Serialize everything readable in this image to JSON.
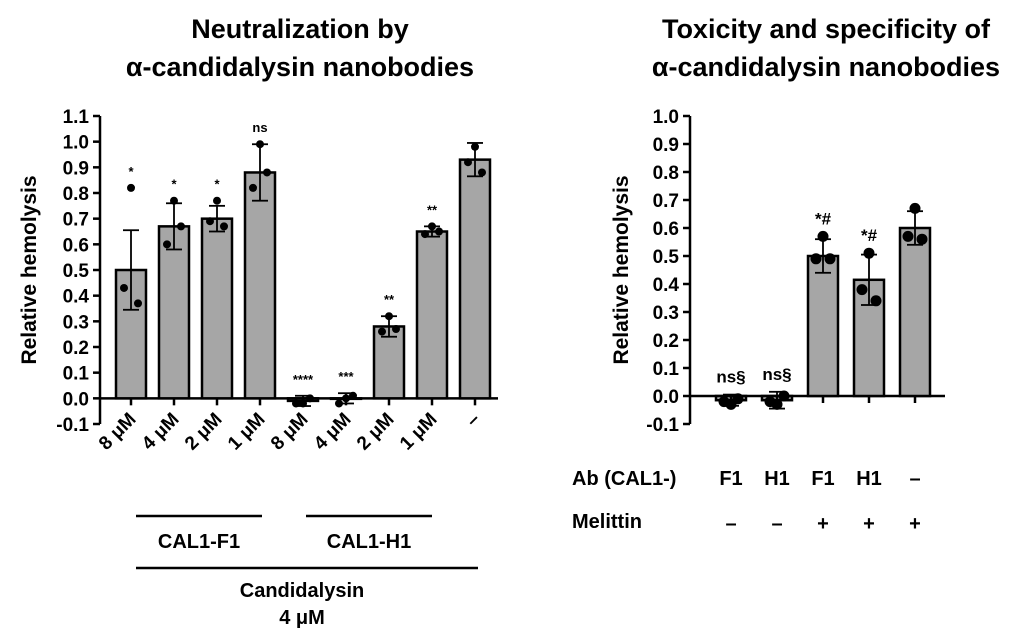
{
  "chart_data": [
    {
      "type": "bar",
      "title": [
        "Neutralization by",
        "α-candidalysin nanobodies"
      ],
      "ylabel": "Relative hemolysis",
      "ylim": [
        -0.1,
        1.1
      ],
      "yticks": [
        "-0.1",
        "0.0",
        "0.1",
        "0.2",
        "0.3",
        "0.4",
        "0.5",
        "0.6",
        "0.7",
        "0.8",
        "0.9",
        "1.0",
        "1.1"
      ],
      "categories": [
        "8 μM",
        "4 μM",
        "2 μM",
        "1 μM",
        "8 μM",
        "4 μM",
        "2 μM",
        "1 μM",
        "–"
      ],
      "values": [
        0.5,
        0.67,
        0.7,
        0.88,
        -0.01,
        0.0,
        0.28,
        0.65,
        0.93
      ],
      "errors": [
        0.155,
        0.09,
        0.05,
        0.11,
        0.02,
        0.02,
        0.04,
        0.02,
        0.065
      ],
      "points": [
        [
          0.82,
          0.43,
          0.37
        ],
        [
          0.77,
          0.6,
          0.67
        ],
        [
          0.77,
          0.69,
          0.67
        ],
        [
          0.99,
          0.82,
          0.88
        ],
        [
          -0.02,
          -0.02,
          0.0
        ],
        [
          0.0,
          -0.02,
          0.01
        ],
        [
          0.32,
          0.26,
          0.27
        ],
        [
          0.67,
          0.64,
          0.65
        ],
        [
          0.98,
          0.92,
          0.88
        ]
      ],
      "significance": [
        "*",
        "*",
        "*",
        "ns",
        "****",
        "***",
        "**",
        "**",
        ""
      ],
      "groups": [
        {
          "label": "CAL1-F1",
          "from": 0,
          "to": 3
        },
        {
          "label": "CAL1-H1",
          "from": 4,
          "to": 7
        }
      ],
      "supergroup": {
        "label": [
          "Candidalysin",
          "4 μM"
        ],
        "from": 0,
        "to": 8
      }
    },
    {
      "type": "bar",
      "title": [
        "Toxicity and specificity of",
        "α-candidalysin nanobodies"
      ],
      "ylabel": "Relative hemolysis",
      "ylim": [
        -0.1,
        1.0
      ],
      "yticks": [
        "-0.1",
        "0.0",
        "0.1",
        "0.2",
        "0.3",
        "0.4",
        "0.5",
        "0.6",
        "0.7",
        "0.8",
        "0.9",
        "1.0"
      ],
      "values": [
        -0.015,
        -0.015,
        0.5,
        0.415,
        0.6
      ],
      "errors": [
        0.02,
        0.03,
        0.06,
        0.09,
        0.06
      ],
      "points": [
        [
          -0.03,
          -0.02,
          -0.01
        ],
        [
          -0.03,
          -0.02,
          0.0
        ],
        [
          0.57,
          0.49,
          0.49
        ],
        [
          0.51,
          0.38,
          0.34
        ],
        [
          0.67,
          0.57,
          0.56
        ]
      ],
      "significance": [
        "ns§",
        "ns§",
        "*#",
        "*#",
        ""
      ],
      "condition_rows": [
        {
          "label": "Ab (CAL1-)",
          "values": [
            "F1",
            "H1",
            "F1",
            "H1",
            "–"
          ]
        },
        {
          "label": "Melittin",
          "values": [
            "–",
            "–",
            "+",
            "+",
            "+"
          ]
        }
      ]
    }
  ],
  "colors": {
    "bar": "#a6a6a6",
    "stroke": "#000000"
  }
}
